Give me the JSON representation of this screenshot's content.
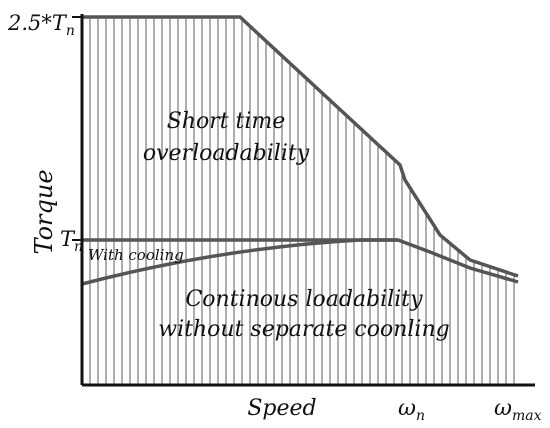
{
  "texts": {
    "y_top_label": "2.5*T",
    "y_top_sub": "n",
    "y_mid_label": "T",
    "y_mid_sub": "n",
    "with_cooling": "With cooling",
    "y_axis": "Torque",
    "x_axis": "Speed",
    "x_n_label": "ω",
    "x_n_sub": "n",
    "x_max_label": "ω",
    "x_max_sub": "max",
    "region_upper_line1": "Short time",
    "region_upper_line2": "overloadability",
    "region_lower_line1": "Continous loadability",
    "region_lower_line2": "without separate coonling"
  },
  "colors": {
    "axis": "#111111",
    "curve": "#555555",
    "hatch": "#333333"
  }
}
